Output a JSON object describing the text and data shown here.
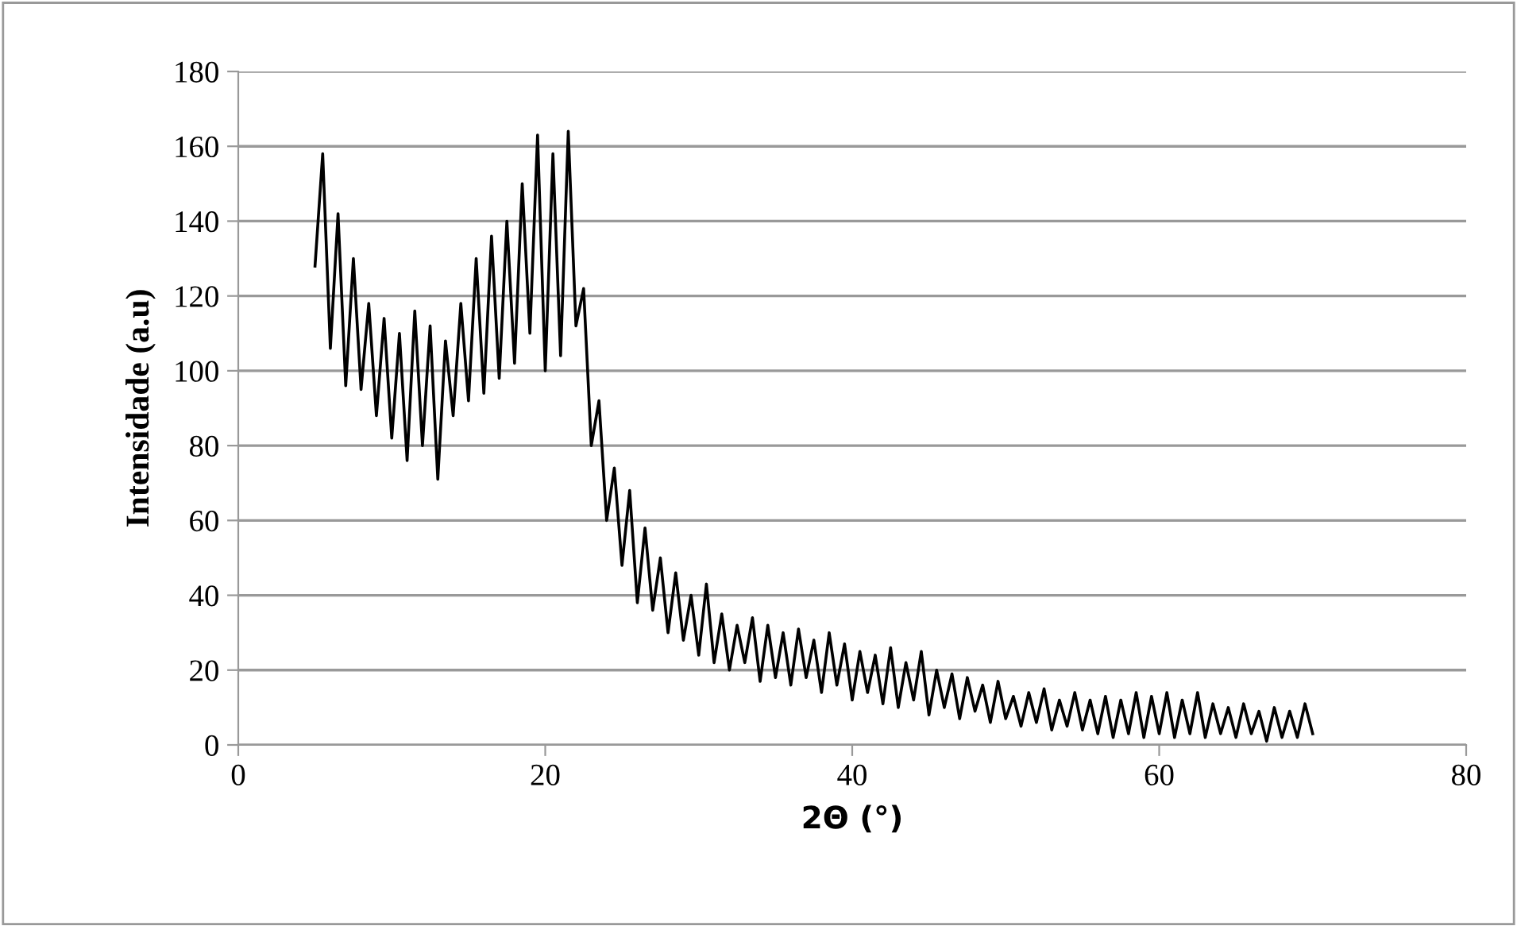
{
  "chart_data": {
    "type": "line",
    "xlabel": "2Θ (°)",
    "ylabel": "Intensidade (a.u)",
    "x": [
      5.0,
      5.5,
      6.0,
      6.5,
      7.0,
      7.5,
      8.0,
      8.5,
      9.0,
      9.5,
      10.0,
      10.5,
      11.0,
      11.5,
      12.0,
      12.5,
      13.0,
      13.5,
      14.0,
      14.5,
      15.0,
      15.5,
      16.0,
      16.5,
      17.0,
      17.5,
      18.0,
      18.5,
      19.0,
      19.5,
      20.0,
      20.5,
      21.0,
      21.5,
      22.0,
      22.5,
      23.0,
      23.5,
      24.0,
      24.5,
      25.0,
      25.5,
      26.0,
      26.5,
      27.0,
      27.5,
      28.0,
      28.5,
      29.0,
      29.5,
      30.0,
      30.5,
      31.0,
      31.5,
      32.0,
      32.5,
      33.0,
      33.5,
      34.0,
      34.5,
      35.0,
      35.5,
      36.0,
      36.5,
      37.0,
      37.5,
      38.0,
      38.5,
      39.0,
      39.5,
      40.0,
      40.5,
      41.0,
      41.5,
      42.0,
      42.5,
      43.0,
      43.5,
      44.0,
      44.5,
      45.0,
      45.5,
      46.0,
      46.5,
      47.0,
      47.5,
      48.0,
      48.5,
      49.0,
      49.5,
      50.0,
      50.5,
      51.0,
      51.5,
      52.0,
      52.5,
      53.0,
      53.5,
      54.0,
      54.5,
      55.0,
      55.5,
      56.0,
      56.5,
      57.0,
      57.5,
      58.0,
      58.5,
      59.0,
      59.5,
      60.0,
      60.5,
      61.0,
      61.5,
      62.0,
      62.5,
      63.0,
      63.5,
      64.0,
      64.5,
      65.0,
      65.5,
      66.0,
      66.5,
      67.0,
      67.5,
      68.0,
      68.5,
      69.0,
      69.5,
      70.0
    ],
    "series": [
      {
        "color": "#000000",
        "values": [
          128,
          158,
          106,
          142,
          96,
          130,
          95,
          118,
          88,
          114,
          82,
          110,
          76,
          116,
          80,
          112,
          71,
          108,
          88,
          118,
          92,
          130,
          94,
          136,
          98,
          140,
          102,
          150,
          110,
          163,
          100,
          158,
          104,
          164,
          112,
          122,
          80,
          92,
          60,
          74,
          48,
          68,
          38,
          58,
          36,
          50,
          30,
          46,
          28,
          40,
          24,
          43,
          22,
          35,
          20,
          32,
          22,
          34,
          17,
          32,
          18,
          30,
          16,
          31,
          18,
          28,
          14,
          30,
          16,
          27,
          12,
          25,
          14,
          24,
          11,
          26,
          10,
          22,
          12,
          25,
          8,
          20,
          10,
          19,
          7,
          18,
          9,
          16,
          6,
          17,
          7,
          13,
          5,
          14,
          6,
          15,
          4,
          12,
          5,
          14,
          4,
          12,
          3,
          13,
          2,
          12,
          3,
          14,
          2,
          13,
          3,
          14,
          2,
          12,
          3,
          14,
          2,
          11,
          3,
          10,
          2,
          11,
          3,
          9,
          1,
          10,
          2,
          9,
          2,
          11,
          3
        ]
      }
    ],
    "xlim": [
      0,
      80
    ],
    "xticks": [
      0,
      20,
      40,
      60,
      80
    ],
    "ylim": [
      0,
      180
    ],
    "yticks": [
      0,
      20,
      40,
      60,
      80,
      100,
      120,
      140,
      160,
      180
    ],
    "grid": "y",
    "marker": "none",
    "line_style": "solid",
    "legend": false
  }
}
